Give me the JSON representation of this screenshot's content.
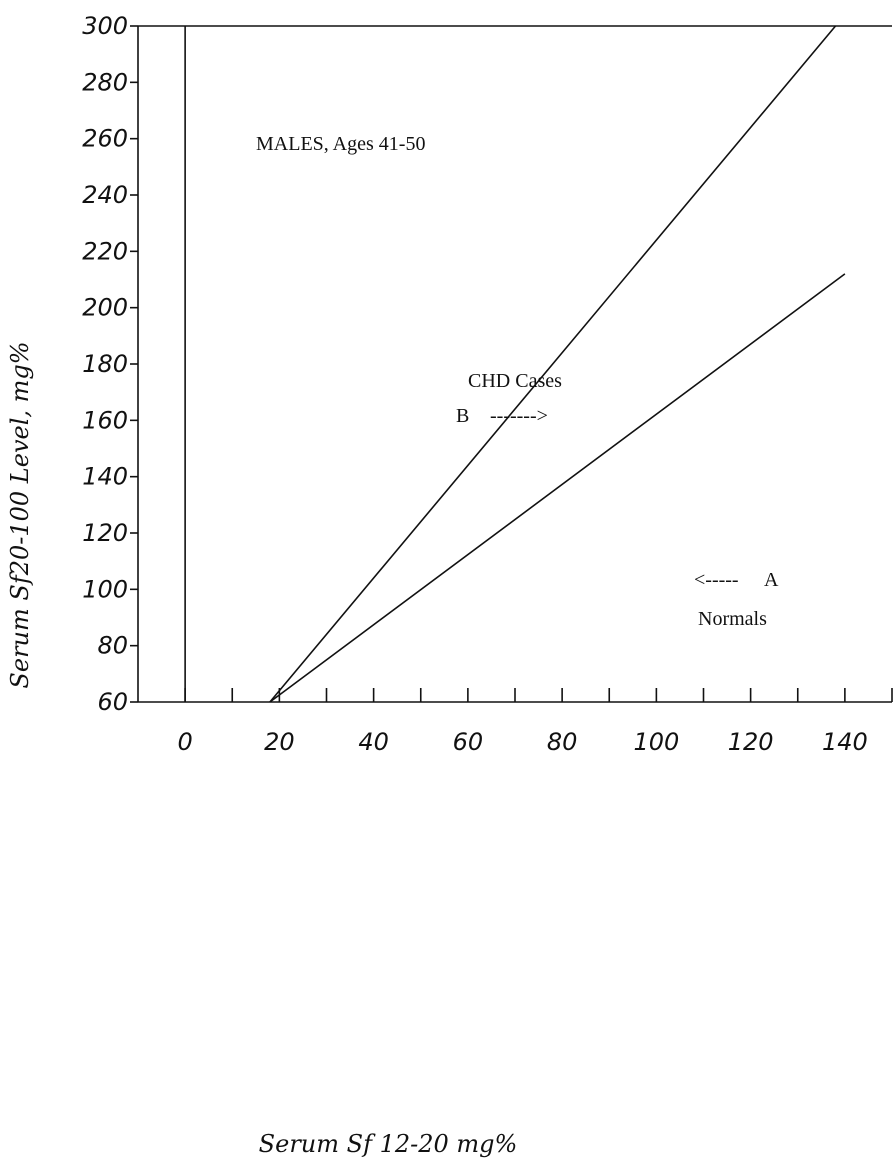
{
  "chart_data": {
    "type": "line",
    "title": "",
    "xlabel": "Serum Sf 12-20 mg%",
    "ylabel": "Serum Sf20-100 Level,  mg%",
    "xlim": [
      -10,
      150
    ],
    "ylim": [
      60,
      300
    ],
    "x_ticks": [
      0,
      20,
      40,
      60,
      80,
      100,
      120,
      140
    ],
    "x_minor_ticks": [
      10,
      30,
      50,
      70,
      90,
      110,
      130,
      150
    ],
    "y_ticks": [
      60,
      80,
      100,
      120,
      140,
      160,
      180,
      200,
      220,
      240,
      260,
      280,
      300
    ],
    "reference_line_x": 0,
    "series": [
      {
        "name": "CHD Cases",
        "x": [
          18,
          138
        ],
        "y": [
          60,
          300
        ]
      },
      {
        "name": "Normals",
        "x": [
          18,
          140
        ],
        "y": [
          60,
          212
        ]
      }
    ],
    "annotations": {
      "group": "MALES, Ages 41-50",
      "line_b_title": "CHD Cases",
      "line_b_letter": "B",
      "line_b_arrow": "------->",
      "line_a_arrow": "<-----",
      "line_a_letter": "A",
      "line_a_title": "Normals"
    },
    "grid": false,
    "legend": "none"
  }
}
